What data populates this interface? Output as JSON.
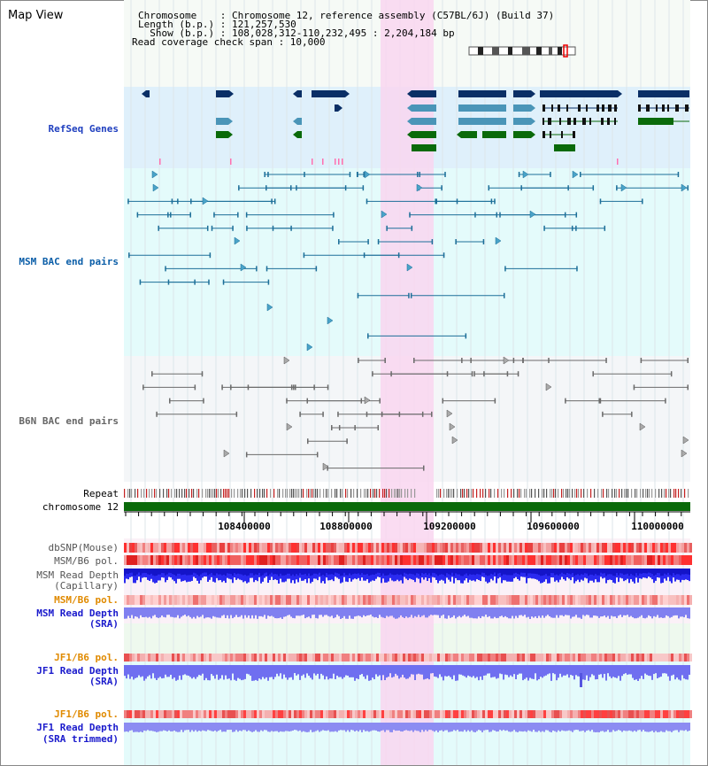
{
  "title": "Map View",
  "info": {
    "chromosome": "Chromosome    : Chromosome 12, reference assembly (C57BL/6J) (Build 37)",
    "length": "Length (b.p.) : 121,257,530",
    "show": "  Show (b.p.) : 108,028,312-110,232,495 : 2,204,184 bp",
    "coverage": "Read coverage check span : 10,000"
  },
  "tracks": {
    "refseq": "RefSeq Genes",
    "msm_bac": "MSM BAC end pairs",
    "b6n_bac": "B6N BAC end pairs",
    "repeat": "Repeat",
    "chromosome": "chromosome 12",
    "dbsnp": "dbSNP(Mouse)",
    "msm_b6_pol": "MSM/B6 pol.",
    "msm_read_depth_cap_1": "MSM Read Depth",
    "msm_read_depth_cap_2": "(Capillary)",
    "msm_b6_pol_sra": "MSM/B6 pol.",
    "msm_read_depth_sra_1": "MSM Read Depth",
    "msm_read_depth_sra_2": "(SRA)",
    "jf1_b6_pol": "JF1/B6 pol.",
    "jf1_read_depth_1": "JF1 Read Depth",
    "jf1_read_depth_2": "(SRA)",
    "jf1_b6_pol_trim": "JF1/B6 pol.",
    "jf1_read_depth_trim_1": "JF1 Read Depth",
    "jf1_read_depth_trim_2": "(SRA trimmed)"
  },
  "axis": {
    "ticks": [
      "108400000",
      "108800000",
      "109200000",
      "109600000",
      "110000000"
    ]
  },
  "colors": {
    "refseq_bg": "#dff0fb",
    "msm_bac_bg": "#e4fbfb",
    "b6n_bac_bg": "#f4f6f8",
    "highlight": "#f9d6f0",
    "gene_dark": "#0a2f66",
    "gene_mid": "#4a95b8",
    "gene_green": "#0a6a0a",
    "msm_label": "#0b5ea8",
    "b6n_label": "#666666",
    "refseq_label": "#1f3fbf",
    "pol_label": "#e08a00",
    "depth_label": "#1a1acc"
  }
}
